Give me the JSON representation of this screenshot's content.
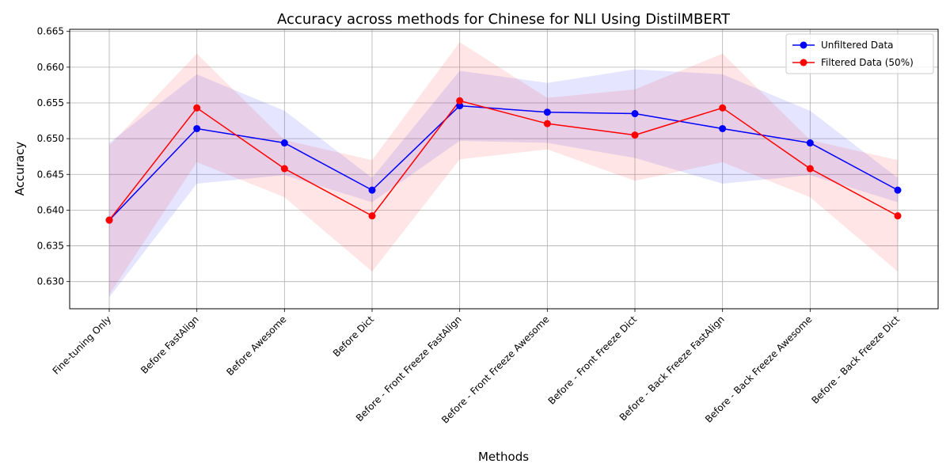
{
  "chart_data": {
    "type": "line",
    "title": "Accuracy across methods for Chinese for NLI Using DistilMBERT",
    "xlabel": "Methods",
    "ylabel": "Accuracy",
    "ylim": [
      0.6262,
      0.6653
    ],
    "yticks": [
      "0.630",
      "0.635",
      "0.640",
      "0.645",
      "0.650",
      "0.655",
      "0.660",
      "0.665"
    ],
    "grid": true,
    "legend_position": "top-right",
    "categories": [
      "Fine-tuning Only",
      "Before FastAlign",
      "Before Awesome",
      "Before Dict",
      "Before - Front Freeze FastAlign",
      "Before - Front Freeze Awesome",
      "Before - Front Freeze Dict",
      "Before - Back Freeze FastAlign",
      "Before - Back Freeze Awesome",
      "Before - Back Freeze Dict"
    ],
    "series": [
      {
        "name": "Unfiltered Data",
        "color": "#0000ff",
        "band_color": "#0000ff",
        "values": [
          0.6386,
          0.6514,
          0.6494,
          0.6428,
          0.6546,
          0.6537,
          0.6535,
          0.6514,
          0.6494,
          0.6428
        ],
        "lower": [
          0.6278,
          0.6437,
          0.6449,
          0.6411,
          0.6497,
          0.6494,
          0.6473,
          0.6437,
          0.6449,
          0.6411
        ],
        "upper": [
          0.6494,
          0.659,
          0.6539,
          0.6445,
          0.6595,
          0.6578,
          0.6597,
          0.659,
          0.6539,
          0.6445
        ]
      },
      {
        "name": "Filtered Data (50%)",
        "color": "#ff0000",
        "band_color": "#ff0000",
        "values": [
          0.6386,
          0.6543,
          0.6458,
          0.6392,
          0.6553,
          0.6521,
          0.6505,
          0.6543,
          0.6458,
          0.6392
        ],
        "lower": [
          0.6282,
          0.6467,
          0.6418,
          0.6314,
          0.6471,
          0.6485,
          0.6441,
          0.6467,
          0.6418,
          0.6314
        ],
        "upper": [
          0.649,
          0.6619,
          0.6498,
          0.647,
          0.6635,
          0.6557,
          0.6569,
          0.6619,
          0.6498,
          0.647
        ]
      }
    ]
  }
}
